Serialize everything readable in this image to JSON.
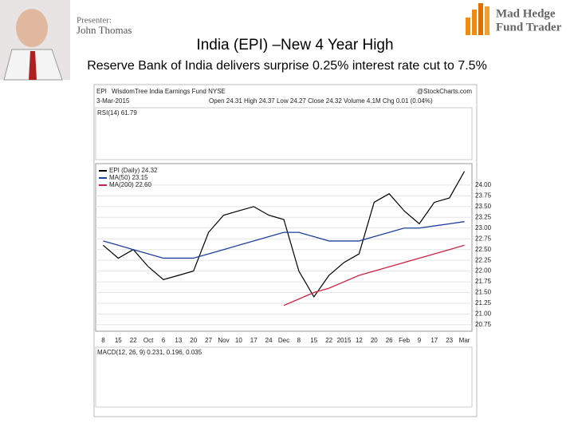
{
  "header": {
    "presenter_label": "Presenter:",
    "presenter_name": "John Thomas",
    "brand_line1": "Mad Hedge",
    "brand_line2": "Fund Trader"
  },
  "title": "India (EPI) –New 4 Year High",
  "subtitle": "Reserve Bank of India delivers surprise 0.25% interest rate cut to 7.5%",
  "chart_data": {
    "type": "line",
    "symbol": "EPI",
    "fund_name": "WisdomTree India Earnings Fund NYSE",
    "source": "@StockCharts.com",
    "date": "3-Mar-2015",
    "quote": "Open 24.31 High 24.37 Low 24.27 Close 24.32 Volume 4.1M Chg 0.01 (0.04%)",
    "rsi_label": "RSI(14) 61.79",
    "macd_label": "MACD(12, 26, 9) 0.231, 0.196, 0.035",
    "categories": [
      "8",
      "15",
      "22",
      "Oct",
      "6",
      "13",
      "20",
      "27",
      "Nov",
      "10",
      "17",
      "24",
      "Dec",
      "8",
      "15",
      "22",
      "2015",
      "12",
      "20",
      "26",
      "Feb",
      "9",
      "17",
      "23",
      "Mar"
    ],
    "series": [
      {
        "name": "EPI (Daily) 24.32",
        "color": "#000000",
        "values": [
          22.6,
          22.3,
          22.5,
          22.1,
          21.8,
          21.9,
          22.0,
          22.9,
          23.3,
          23.4,
          23.5,
          23.3,
          23.2,
          22.0,
          21.4,
          21.9,
          22.2,
          22.4,
          23.6,
          23.8,
          23.4,
          23.1,
          23.6,
          23.7,
          24.32
        ]
      },
      {
        "name": "MA(50) 23.15",
        "color": "#1f3f9f",
        "values": [
          22.7,
          22.6,
          22.5,
          22.4,
          22.3,
          22.3,
          22.3,
          22.4,
          22.5,
          22.6,
          22.7,
          22.8,
          22.9,
          22.9,
          22.8,
          22.7,
          22.7,
          22.7,
          22.8,
          22.9,
          23.0,
          23.0,
          23.05,
          23.1,
          23.15
        ]
      },
      {
        "name": "MA(200) 22.60",
        "color": "#cc2244",
        "values": [
          null,
          null,
          null,
          null,
          null,
          null,
          null,
          null,
          null,
          null,
          null,
          null,
          21.2,
          21.35,
          21.5,
          21.6,
          21.75,
          21.9,
          22.0,
          22.1,
          22.2,
          22.3,
          22.4,
          22.5,
          22.6
        ]
      }
    ],
    "ylim": [
      20.6,
      24.5
    ],
    "yticks": [
      {
        "value": 24,
        "label": "24.00"
      },
      {
        "value": 23.75,
        "label": "23.75"
      },
      {
        "value": 23.5,
        "label": "23.50"
      },
      {
        "value": 23.25,
        "label": "23.25"
      },
      {
        "value": 23,
        "label": "23.00"
      },
      {
        "value": 22.75,
        "label": "22.75"
      },
      {
        "value": 22.5,
        "label": "22.50"
      },
      {
        "value": 22.25,
        "label": "22.25"
      },
      {
        "value": 22,
        "label": "22.00"
      },
      {
        "value": 21.75,
        "label": "21.75"
      },
      {
        "value": 21.5,
        "label": "21.50"
      },
      {
        "value": 21.25,
        "label": "21.25"
      },
      {
        "value": 21,
        "label": "21.00"
      },
      {
        "value": 20.75,
        "label": "20.75"
      }
    ],
    "grid": true
  }
}
